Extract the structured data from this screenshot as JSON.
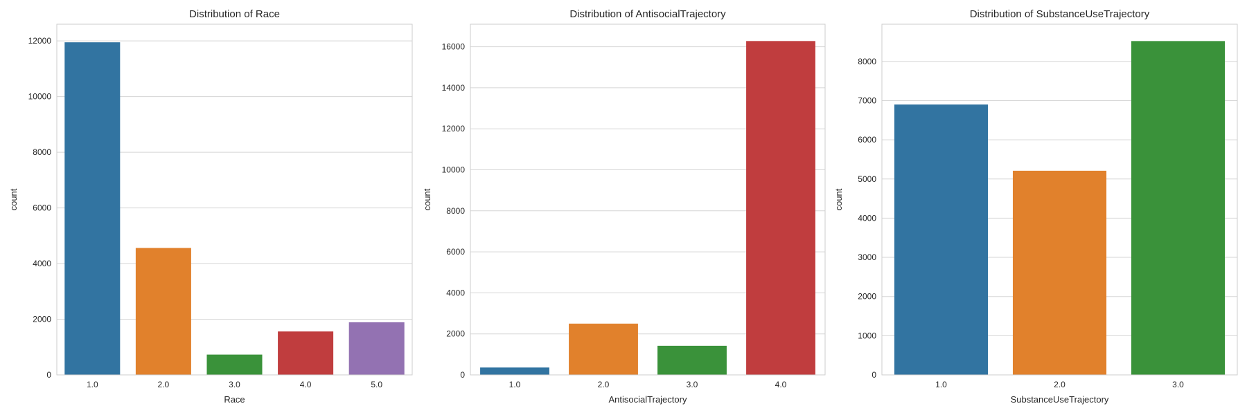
{
  "chart_data": [
    {
      "type": "bar",
      "title": "Distribution of Race",
      "xlabel": "Race",
      "ylabel": "count",
      "categories": [
        "1.0",
        "2.0",
        "3.0",
        "4.0",
        "5.0"
      ],
      "values": [
        11950,
        4560,
        730,
        1560,
        1890
      ],
      "ylim": [
        0,
        12600
      ],
      "yticks": [
        0,
        2000,
        4000,
        6000,
        8000,
        10000,
        12000
      ],
      "colors": [
        "#3274a1",
        "#e1812c",
        "#3a923a",
        "#c03d3e",
        "#9372b2"
      ],
      "grid": true
    },
    {
      "type": "bar",
      "title": "Distribution of AntisocialTrajectory",
      "xlabel": "AntisocialTrajectory",
      "ylabel": "count",
      "categories": [
        "1.0",
        "2.0",
        "3.0",
        "4.0"
      ],
      "values": [
        360,
        2500,
        1420,
        16280
      ],
      "ylim": [
        0,
        17100
      ],
      "yticks": [
        0,
        2000,
        4000,
        6000,
        8000,
        10000,
        12000,
        14000,
        16000
      ],
      "colors": [
        "#3274a1",
        "#e1812c",
        "#3a923a",
        "#c03d3e"
      ],
      "grid": true
    },
    {
      "type": "bar",
      "title": "Distribution of SubstanceUseTrajectory",
      "xlabel": "SubstanceUseTrajectory",
      "ylabel": "count",
      "categories": [
        "1.0",
        "2.0",
        "3.0"
      ],
      "values": [
        6900,
        5210,
        8520
      ],
      "ylim": [
        0,
        8950
      ],
      "yticks": [
        0,
        1000,
        2000,
        3000,
        4000,
        5000,
        6000,
        7000,
        8000
      ],
      "colors": [
        "#3274a1",
        "#e1812c",
        "#3a923a"
      ],
      "grid": true
    }
  ]
}
